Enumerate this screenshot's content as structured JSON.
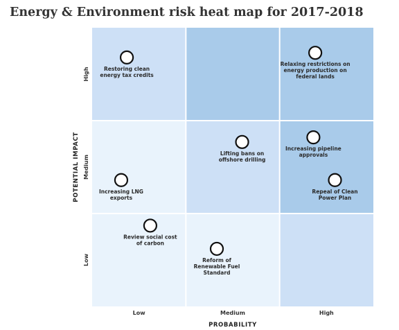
{
  "chart_data": {
    "type": "heatmap",
    "title": "Energy & Environment risk heat map for 2017-2018",
    "xlabel": "PROBABILITY",
    "ylabel": "POTENTIAL IMPACT",
    "x_categories": [
      "Low",
      "Medium",
      "High"
    ],
    "y_categories": [
      "Low",
      "Medium",
      "High"
    ],
    "cells": [
      {
        "x": "Low",
        "y": "High",
        "color": "#cde0f6"
      },
      {
        "x": "Medium",
        "y": "High",
        "color": "#a9cbea"
      },
      {
        "x": "High",
        "y": "High",
        "color": "#a9cbea"
      },
      {
        "x": "Low",
        "y": "Medium",
        "color": "#e9f3fc"
      },
      {
        "x": "Medium",
        "y": "Medium",
        "color": "#cde0f6"
      },
      {
        "x": "High",
        "y": "Medium",
        "color": "#a9cbea"
      },
      {
        "x": "Low",
        "y": "Low",
        "color": "#e9f3fc"
      },
      {
        "x": "Medium",
        "y": "Low",
        "color": "#e9f3fc"
      },
      {
        "x": "High",
        "y": "Low",
        "color": "#cde0f6"
      }
    ],
    "points": [
      {
        "label": [
          "Restoring clean",
          "energy tax credits"
        ],
        "x": 0.37,
        "y": 2.68
      },
      {
        "label": [
          "Relaxing restrictions on",
          "energy production on",
          "federal lands"
        ],
        "x": 2.38,
        "y": 2.73
      },
      {
        "label": [
          "Lifting bans on",
          "offshore drilling"
        ],
        "x": 1.6,
        "y": 1.77
      },
      {
        "label": [
          "Increasing pipeline",
          "approvals"
        ],
        "x": 2.36,
        "y": 1.82
      },
      {
        "label": [
          "Repeal of Clean",
          "Power Plan"
        ],
        "x": 2.59,
        "y": 1.36
      },
      {
        "label": [
          "Increasing LNG",
          "exports"
        ],
        "x": 0.31,
        "y": 1.36
      },
      {
        "label": [
          "Review social cost",
          "of carbon"
        ],
        "x": 0.62,
        "y": 0.87
      },
      {
        "label": [
          "Reform of",
          "Renewable Fuel",
          "Standard"
        ],
        "x": 1.33,
        "y": 0.62
      }
    ],
    "xlim": [
      0,
      3
    ],
    "ylim": [
      0,
      3
    ],
    "grid": true
  }
}
